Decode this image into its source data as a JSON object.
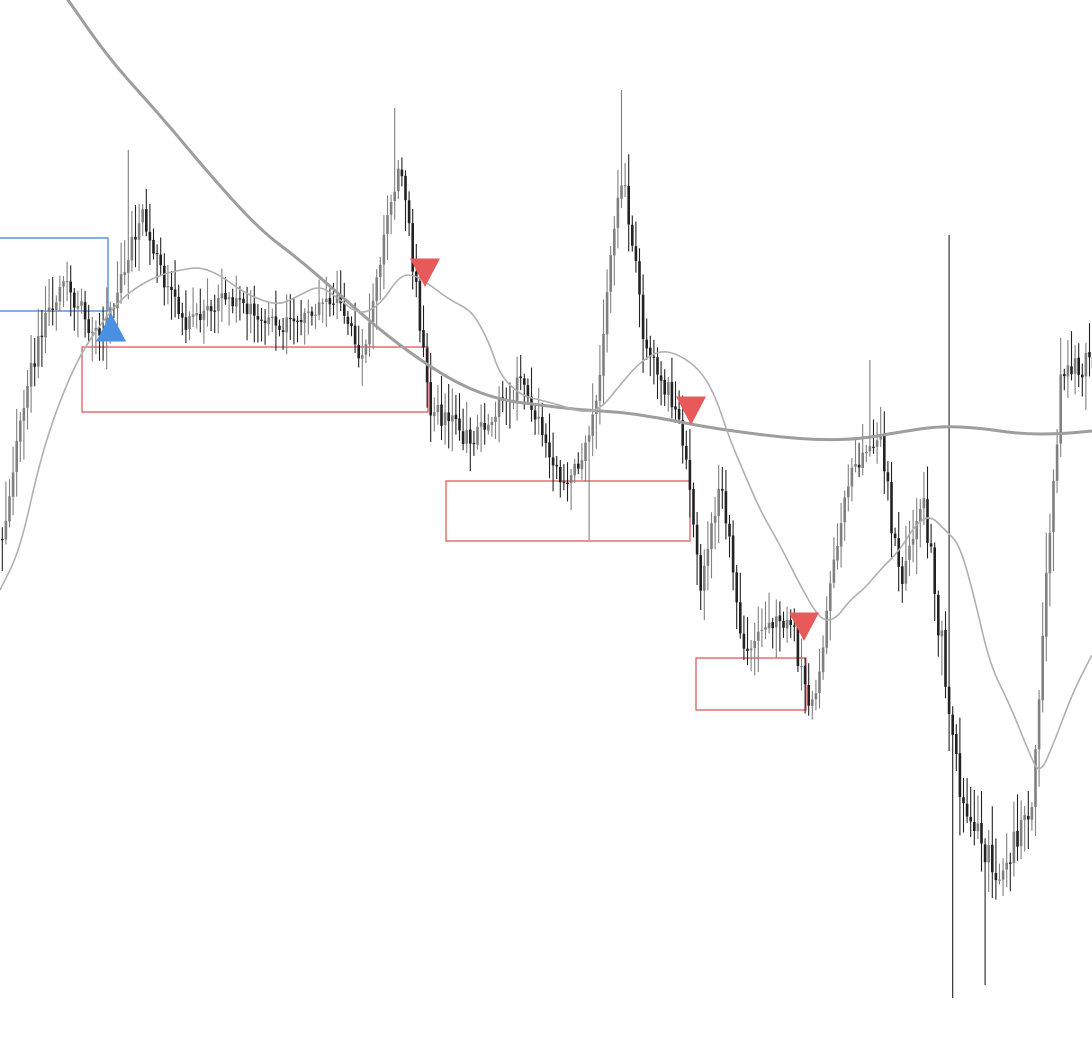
{
  "chart_data": {
    "type": "candlestick",
    "title": "",
    "xlabel": "",
    "ylabel": "",
    "ylim": [
      0,
      1038
    ],
    "grid": false,
    "legend": "none",
    "colors": {
      "bull_candle": "#808080",
      "bear_candle": "#222222",
      "wick": "#333333",
      "ma_long": "#9e9e9e",
      "ma_short": "#b0b0b0",
      "zone_red": "#e05050",
      "zone_blue": "#3a7fd5",
      "marker_sell": "#e85a5a",
      "marker_buy": "#4a90e2"
    },
    "segments": [
      {
        "x0": 0,
        "x1": 30,
        "s": 540,
        "e": 370,
        "vol": 14
      },
      {
        "x0": 30,
        "x1": 60,
        "s": 370,
        "e": 280,
        "vol": 12
      },
      {
        "x0": 60,
        "x1": 100,
        "s": 280,
        "e": 345,
        "vol": 10
      },
      {
        "x0": 100,
        "x1": 140,
        "s": 345,
        "e": 215,
        "vol": 11
      },
      {
        "x0": 140,
        "x1": 180,
        "s": 215,
        "e": 320,
        "vol": 10
      },
      {
        "x0": 180,
        "x1": 230,
        "s": 320,
        "e": 300,
        "vol": 9
      },
      {
        "x0": 230,
        "x1": 280,
        "s": 300,
        "e": 330,
        "vol": 9
      },
      {
        "x0": 280,
        "x1": 340,
        "s": 330,
        "e": 300,
        "vol": 8
      },
      {
        "x0": 340,
        "x1": 360,
        "s": 300,
        "e": 360,
        "vol": 8
      },
      {
        "x0": 360,
        "x1": 398,
        "s": 360,
        "e": 160,
        "vol": 10
      },
      {
        "x0": 398,
        "x1": 430,
        "s": 160,
        "e": 410,
        "vol": 11
      },
      {
        "x0": 430,
        "x1": 470,
        "s": 410,
        "e": 440,
        "vol": 10
      },
      {
        "x0": 470,
        "x1": 520,
        "s": 440,
        "e": 380,
        "vol": 9
      },
      {
        "x0": 520,
        "x1": 560,
        "s": 380,
        "e": 480,
        "vol": 10
      },
      {
        "x0": 560,
        "x1": 590,
        "s": 480,
        "e": 440,
        "vol": 9
      },
      {
        "x0": 590,
        "x1": 620,
        "s": 440,
        "e": 170,
        "vol": 12
      },
      {
        "x0": 620,
        "x1": 645,
        "s": 170,
        "e": 350,
        "vol": 12
      },
      {
        "x0": 645,
        "x1": 680,
        "s": 350,
        "e": 420,
        "vol": 9
      },
      {
        "x0": 680,
        "x1": 700,
        "s": 420,
        "e": 590,
        "vol": 11
      },
      {
        "x0": 700,
        "x1": 720,
        "s": 590,
        "e": 480,
        "vol": 10
      },
      {
        "x0": 720,
        "x1": 740,
        "s": 480,
        "e": 640,
        "vol": 10
      },
      {
        "x0": 740,
        "x1": 790,
        "s": 640,
        "e": 620,
        "vol": 11
      },
      {
        "x0": 790,
        "x1": 810,
        "s": 620,
        "e": 720,
        "vol": 10
      },
      {
        "x0": 810,
        "x1": 845,
        "s": 720,
        "e": 480,
        "vol": 11
      },
      {
        "x0": 845,
        "x1": 880,
        "s": 480,
        "e": 440,
        "vol": 10
      },
      {
        "x0": 880,
        "x1": 900,
        "s": 440,
        "e": 600,
        "vol": 12
      },
      {
        "x0": 900,
        "x1": 920,
        "s": 600,
        "e": 490,
        "vol": 12
      },
      {
        "x0": 920,
        "x1": 960,
        "s": 490,
        "e": 800,
        "vol": 14
      },
      {
        "x0": 960,
        "x1": 1000,
        "s": 800,
        "e": 880,
        "vol": 14
      },
      {
        "x0": 1000,
        "x1": 1030,
        "s": 880,
        "e": 800,
        "vol": 13
      },
      {
        "x0": 1030,
        "x1": 1060,
        "s": 800,
        "e": 380,
        "vol": 14
      },
      {
        "x0": 1060,
        "x1": 1092,
        "s": 380,
        "e": 360,
        "vol": 12
      }
    ],
    "spikes": [
      {
        "x": 128,
        "high": 150
      },
      {
        "x": 392,
        "high": 108
      },
      {
        "x": 619,
        "high": 90
      },
      {
        "x": 947,
        "high": 235
      },
      {
        "x": 951,
        "low": 998
      },
      {
        "x": 985,
        "low": 985
      },
      {
        "x": 869,
        "high": 360
      },
      {
        "x": 587,
        "low": 540
      }
    ],
    "ma_long": [
      [
        68,
        0
      ],
      [
        110,
        60
      ],
      [
        160,
        115
      ],
      [
        210,
        175
      ],
      [
        260,
        230
      ],
      [
        300,
        260
      ],
      [
        340,
        295
      ],
      [
        380,
        330
      ],
      [
        420,
        360
      ],
      [
        460,
        385
      ],
      [
        500,
        400
      ],
      [
        540,
        405
      ],
      [
        580,
        410
      ],
      [
        620,
        412
      ],
      [
        660,
        418
      ],
      [
        700,
        426
      ],
      [
        740,
        432
      ],
      [
        780,
        437
      ],
      [
        820,
        440
      ],
      [
        860,
        439
      ],
      [
        900,
        432
      ],
      [
        940,
        426
      ],
      [
        980,
        428
      ],
      [
        1020,
        434
      ],
      [
        1060,
        434
      ],
      [
        1092,
        431
      ]
    ],
    "ma_short": [
      [
        0,
        590
      ],
      [
        20,
        550
      ],
      [
        40,
        460
      ],
      [
        60,
        400
      ],
      [
        80,
        355
      ],
      [
        100,
        325
      ],
      [
        120,
        300
      ],
      [
        140,
        285
      ],
      [
        160,
        275
      ],
      [
        180,
        270
      ],
      [
        200,
        267
      ],
      [
        220,
        275
      ],
      [
        240,
        290
      ],
      [
        260,
        300
      ],
      [
        280,
        305
      ],
      [
        300,
        295
      ],
      [
        320,
        285
      ],
      [
        340,
        300
      ],
      [
        360,
        315
      ],
      [
        380,
        305
      ],
      [
        400,
        275
      ],
      [
        415,
        275
      ],
      [
        430,
        285
      ],
      [
        450,
        300
      ],
      [
        470,
        310
      ],
      [
        480,
        325
      ],
      [
        490,
        345
      ],
      [
        500,
        375
      ],
      [
        520,
        395
      ],
      [
        540,
        400
      ],
      [
        560,
        405
      ],
      [
        580,
        412
      ],
      [
        600,
        410
      ],
      [
        620,
        385
      ],
      [
        640,
        362
      ],
      [
        660,
        350
      ],
      [
        680,
        355
      ],
      [
        700,
        370
      ],
      [
        715,
        395
      ],
      [
        730,
        440
      ],
      [
        745,
        475
      ],
      [
        760,
        510
      ],
      [
        780,
        545
      ],
      [
        800,
        585
      ],
      [
        820,
        620
      ],
      [
        835,
        620
      ],
      [
        850,
        600
      ],
      [
        865,
        588
      ],
      [
        880,
        570
      ],
      [
        900,
        550
      ],
      [
        915,
        525
      ],
      [
        930,
        515
      ],
      [
        945,
        530
      ],
      [
        960,
        545
      ],
      [
        975,
        600
      ],
      [
        990,
        665
      ],
      [
        1010,
        705
      ],
      [
        1030,
        755
      ],
      [
        1040,
        775
      ],
      [
        1055,
        740
      ],
      [
        1070,
        700
      ],
      [
        1080,
        678
      ],
      [
        1092,
        655
      ]
    ],
    "zones": [
      {
        "color": "red",
        "x0": 82,
        "x1": 428,
        "y0": 347,
        "y1": 412
      },
      {
        "color": "red",
        "x0": 446,
        "x1": 690,
        "y0": 481,
        "y1": 541
      },
      {
        "color": "red",
        "x0": 696,
        "x1": 806,
        "y0": 658,
        "y1": 710
      },
      {
        "color": "blue",
        "x0": 0,
        "x1": 108,
        "y0": 238,
        "y1": 311
      }
    ],
    "markers": [
      {
        "type": "buy",
        "x": 111,
        "y": 328
      },
      {
        "type": "sell",
        "x": 425,
        "y": 272
      },
      {
        "type": "sell",
        "x": 691,
        "y": 410
      },
      {
        "type": "sell",
        "x": 804,
        "y": 626
      }
    ]
  }
}
